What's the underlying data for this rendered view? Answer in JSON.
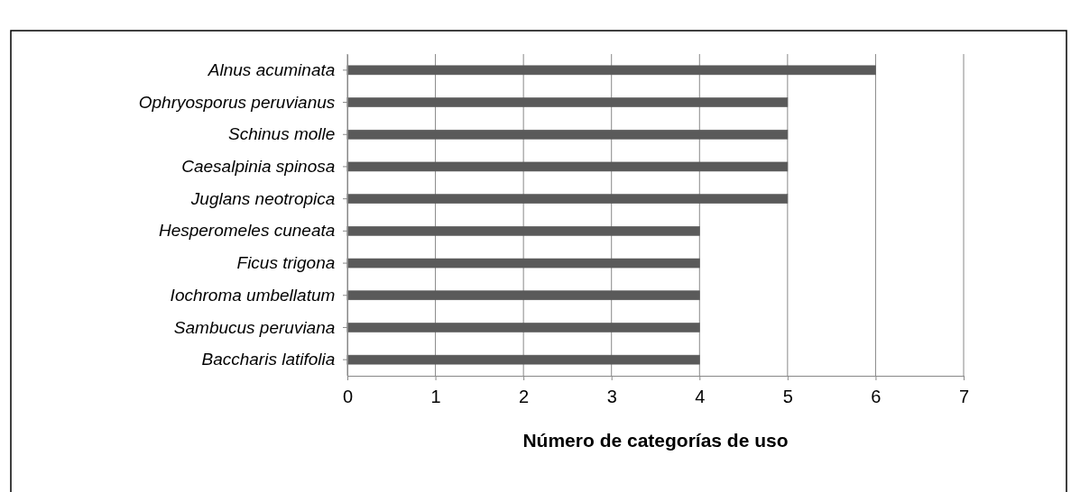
{
  "chart_data": {
    "type": "bar",
    "orientation": "horizontal",
    "xlabel": "Número de categorías de uso",
    "categories": [
      "Alnus acuminata",
      "Ophryosporus peruvianus",
      "Schinus molle",
      "Caesalpinia spinosa",
      "Juglans neotropica",
      "Hesperomeles cuneata",
      "Ficus trigona",
      "Iochroma umbellatum",
      "Sambucus peruviana",
      "Baccharis latifolia"
    ],
    "values": [
      6,
      5,
      5,
      5,
      5,
      4,
      4,
      4,
      4,
      4
    ],
    "color": "#5a5a5a",
    "xlim": [
      0,
      7
    ],
    "xticks": [
      0,
      1,
      2,
      3,
      4,
      5,
      6,
      7
    ],
    "grid": "x"
  }
}
